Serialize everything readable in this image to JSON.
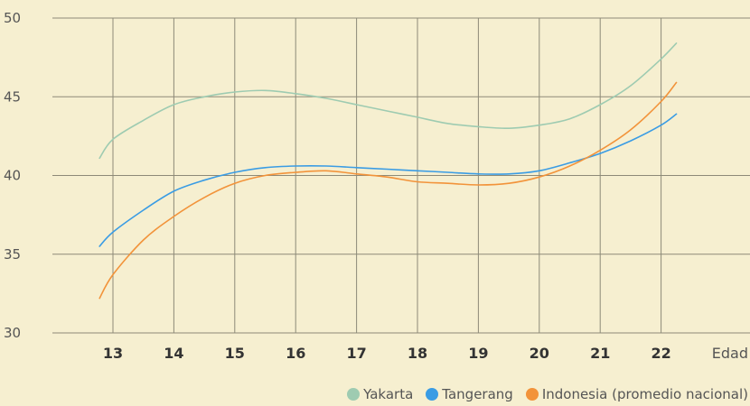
{
  "chart_data": {
    "type": "line",
    "xlabel": "Edad",
    "ylabel": "",
    "x_ticks": [
      13,
      14,
      15,
      16,
      17,
      18,
      19,
      20,
      21,
      22
    ],
    "y_ticks": [
      30,
      35,
      40,
      45,
      50
    ],
    "xlim": [
      12,
      23
    ],
    "ylim": [
      30,
      50
    ],
    "grid": true,
    "legend_position": "bottom-right",
    "series": [
      {
        "name": "Yakarta",
        "color": "#9ecbb1",
        "x": [
          12.78,
          13,
          13.5,
          14,
          14.5,
          15,
          15.5,
          16,
          16.5,
          17,
          17.5,
          18,
          18.5,
          19,
          19.5,
          20,
          20.5,
          21,
          21.5,
          22,
          22.25
        ],
        "y": [
          41.1,
          42.3,
          43.5,
          44.5,
          45.0,
          45.3,
          45.4,
          45.2,
          44.9,
          44.5,
          44.1,
          43.7,
          43.3,
          43.1,
          43.0,
          43.2,
          43.6,
          44.5,
          45.7,
          47.4,
          48.4
        ]
      },
      {
        "name": "Tangerang",
        "color": "#3a9ce4",
        "x": [
          12.78,
          13,
          13.5,
          14,
          14.5,
          15,
          15.5,
          16,
          16.5,
          17,
          17.5,
          18,
          18.5,
          19,
          19.5,
          20,
          20.5,
          21,
          21.5,
          22,
          22.25
        ],
        "y": [
          35.5,
          36.4,
          37.8,
          39.0,
          39.7,
          40.2,
          40.5,
          40.6,
          40.6,
          40.5,
          40.4,
          40.3,
          40.2,
          40.1,
          40.1,
          40.3,
          40.8,
          41.4,
          42.2,
          43.2,
          43.9
        ]
      },
      {
        "name": "Indonesia (promedio nacional)",
        "color": "#f2933a",
        "x": [
          12.78,
          13,
          13.5,
          14,
          14.5,
          15,
          15.5,
          16,
          16.5,
          17,
          17.5,
          18,
          18.5,
          19,
          19.5,
          20,
          20.5,
          21,
          21.5,
          22,
          22.25
        ],
        "y": [
          32.2,
          33.7,
          35.9,
          37.4,
          38.6,
          39.5,
          40.0,
          40.2,
          40.3,
          40.1,
          39.9,
          39.6,
          39.5,
          39.4,
          39.5,
          39.9,
          40.6,
          41.6,
          42.9,
          44.7,
          45.9
        ]
      }
    ]
  }
}
